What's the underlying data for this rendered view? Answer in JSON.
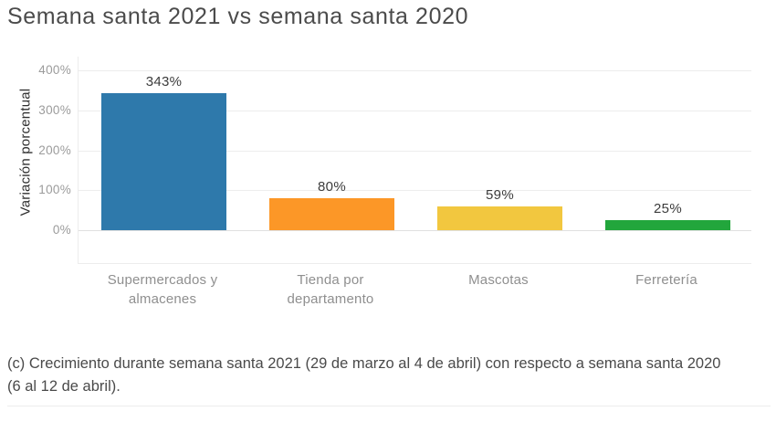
{
  "title": "Semana santa 2021 vs semana santa 2020",
  "caption": "(c) Crecimiento durante semana santa 2021 (29 de marzo al 4 de abril) con respecto a semana santa 2020 (6 al 12 de abril).",
  "chart_data": {
    "type": "bar",
    "title": "Semana santa 2021 vs semana santa 2020",
    "xlabel": "",
    "ylabel": "Variación porcentual",
    "categories": [
      "Supermercados y almacenes",
      "Tienda por departamento",
      "Mascotas",
      "Ferretería"
    ],
    "values": [
      343,
      80,
      59,
      25
    ],
    "value_labels": [
      "343%",
      "80%",
      "59%",
      "25%"
    ],
    "bar_colors": [
      "#2e79ab",
      "#fc9727",
      "#f2c73f",
      "#22a63c"
    ],
    "yticks": [
      0,
      100,
      200,
      300,
      400
    ],
    "ytick_labels": [
      "0%",
      "100%",
      "200%",
      "300%",
      "400%"
    ],
    "ylim": [
      0,
      430
    ],
    "grid": true,
    "legend": "none"
  }
}
